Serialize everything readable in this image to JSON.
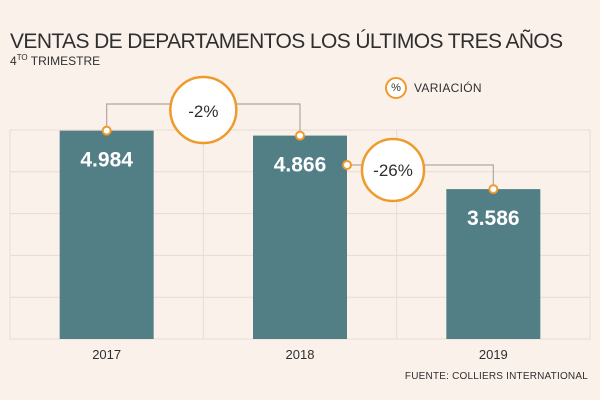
{
  "header": {
    "title": "VENTAS  DE DEPARTAMENTOS LOS ÚLTIMOS TRES AÑOS",
    "subtitle_main": "4",
    "subtitle_sup": "TO",
    "subtitle_rest": " TRIMESTRE"
  },
  "legend": {
    "symbol": "%",
    "label": "VARIACIÓN"
  },
  "source": "FUENTE: COLLIERS INTERNATIONAL",
  "colors": {
    "bar": "#527e86",
    "accent": "#ef9a2c",
    "grid": "#e7dbd4",
    "connector": "#b3a69e",
    "background": "#fbf1eb"
  },
  "chart_data": {
    "type": "bar",
    "title": "VENTAS  DE DEPARTAMENTOS LOS ÚLTIMOS TRES AÑOS",
    "subtitle": "4TO TRIMESTRE",
    "categories": [
      "2017",
      "2018",
      "2019"
    ],
    "values": [
      4984,
      4866,
      3586
    ],
    "value_labels": [
      "4.984",
      "4.866",
      "3.586"
    ],
    "ylim": [
      0,
      5000
    ],
    "grid": true,
    "xlabel": "",
    "ylabel": "",
    "variations": [
      {
        "from": 0,
        "to": 1,
        "label": "-2%"
      },
      {
        "from": 1,
        "to": 2,
        "label": "-26%"
      }
    ]
  }
}
